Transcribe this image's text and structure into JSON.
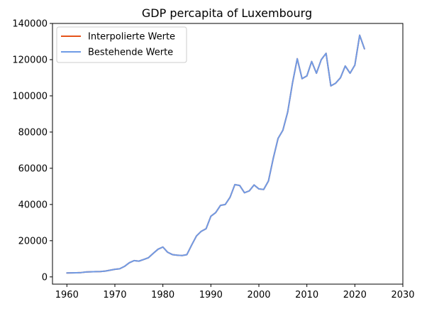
{
  "chart_data": {
    "type": "line",
    "title": "GDP percapita of Luxembourg",
    "xlabel": "",
    "ylabel": "",
    "xlim": [
      1957,
      2030
    ],
    "ylim": [
      -4000,
      140000
    ],
    "x_ticks": [
      1960,
      1970,
      1980,
      1990,
      2000,
      2010,
      2020,
      2030
    ],
    "y_ticks": [
      0,
      20000,
      40000,
      60000,
      80000,
      100000,
      120000,
      140000
    ],
    "grid": false,
    "legend_position": "upper-left",
    "x": [
      1960,
      1961,
      1962,
      1963,
      1964,
      1965,
      1966,
      1967,
      1968,
      1969,
      1970,
      1971,
      1972,
      1973,
      1974,
      1975,
      1976,
      1977,
      1978,
      1979,
      1980,
      1981,
      1982,
      1983,
      1984,
      1985,
      1986,
      1987,
      1988,
      1989,
      1990,
      1991,
      1992,
      1993,
      1994,
      1995,
      1996,
      1997,
      1998,
      1999,
      2000,
      2001,
      2002,
      2003,
      2004,
      2005,
      2006,
      2007,
      2008,
      2009,
      2010,
      2011,
      2012,
      2013,
      2014,
      2015,
      2016,
      2017,
      2018,
      2019,
      2020,
      2021,
      2022
    ],
    "series": [
      {
        "name": "Interpolierte Werte",
        "color": "#e5531a",
        "values": [
          2200,
          2250,
          2300,
          2400,
          2700,
          2800,
          2900,
          2950,
          3200,
          3700,
          4200,
          4500,
          5800,
          7800,
          9000,
          8700,
          9600,
          10600,
          13000,
          15300,
          16500,
          13600,
          12300,
          12000,
          11800,
          12300,
          17600,
          22600,
          25200,
          26600,
          33500,
          35500,
          39500,
          40000,
          44000,
          51000,
          50500,
          46500,
          47500,
          50800,
          48600,
          48300,
          53000,
          65500,
          76500,
          81000,
          91000,
          107000,
          120500,
          109500,
          111000,
          119000,
          112500,
          120000,
          123500,
          105500,
          107000,
          110000,
          116500,
          112500,
          117000,
          133500,
          126000
        ]
      },
      {
        "name": "Bestehende Werte",
        "color": "#6f9be6",
        "values": [
          2200,
          2250,
          2300,
          2400,
          2700,
          2800,
          2900,
          2950,
          3200,
          3700,
          4200,
          4500,
          5800,
          7800,
          9000,
          8700,
          9600,
          10600,
          13000,
          15300,
          16500,
          13600,
          12300,
          12000,
          11800,
          12300,
          17600,
          22600,
          25200,
          26600,
          33500,
          35500,
          39500,
          40000,
          44000,
          51000,
          50500,
          46500,
          47500,
          50800,
          48600,
          48300,
          53000,
          65500,
          76500,
          81000,
          91000,
          107000,
          120500,
          109500,
          111000,
          119000,
          112500,
          120000,
          123500,
          105500,
          107000,
          110000,
          116500,
          112500,
          117000,
          133500,
          126000
        ]
      }
    ]
  }
}
